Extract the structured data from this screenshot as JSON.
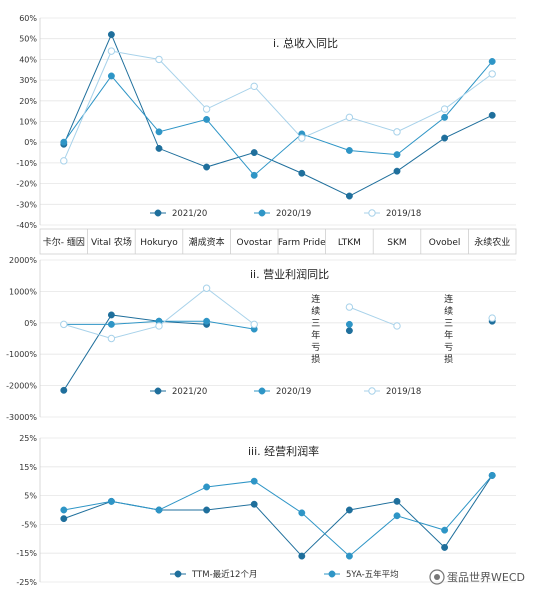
{
  "colors": {
    "dark": "#1f6f9c",
    "mid": "#2e95c6",
    "light": "#a8d2ea",
    "light_fill": "#ffffff",
    "grid": "#e6e6e6",
    "axis": "#cfcfcf"
  },
  "categories": [
    "卡尔- 缅因",
    "Vital 农场",
    "Hokuryo",
    "潮成资本",
    "Ovostar",
    "Farm Pride",
    "LTKM",
    "SKM",
    "Ovobel",
    "永续农业"
  ],
  "watermark": "蛋品世界WECD",
  "chart_data": [
    {
      "type": "line",
      "title": "i. 总收入同比",
      "categories": [
        "卡尔- 缅因",
        "Vital 农场",
        "Hokuryo",
        "潮成资本",
        "Ovostar",
        "Farm Pride",
        "LTKM",
        "SKM",
        "Ovobel",
        "永续农业"
      ],
      "ylim": [
        -40,
        60
      ],
      "yticks": [
        -40,
        -30,
        -20,
        -10,
        0,
        10,
        20,
        30,
        40,
        50,
        60
      ],
      "yticklabels": [
        "-40%",
        "-30%",
        "-20%",
        "-10%",
        "0%",
        "10%",
        "20%",
        "30%",
        "40%",
        "50%",
        "60%"
      ],
      "grid": true,
      "series": [
        {
          "name": "2021/20",
          "color": "dark",
          "marker": "filled",
          "values": [
            -1,
            52,
            -3,
            -12,
            -5,
            -15,
            -26,
            -14,
            2,
            13
          ]
        },
        {
          "name": "2020/19",
          "color": "mid",
          "marker": "filled",
          "values": [
            0,
            32,
            5,
            11,
            -16,
            4,
            -4,
            -6,
            12,
            39
          ]
        },
        {
          "name": "2019/18",
          "color": "light",
          "marker": "hollow",
          "values": [
            -9,
            44,
            40,
            16,
            27,
            2,
            12,
            5,
            16,
            33
          ]
        }
      ]
    },
    {
      "type": "line",
      "title": "ii. 营业利润同比",
      "categories": [
        "卡尔- 缅因",
        "Vital 农场",
        "Hokuryo",
        "潮成资本",
        "Ovostar",
        "Farm Pride",
        "LTKM",
        "SKM",
        "Ovobel",
        "永续农业"
      ],
      "ylim": [
        -3000,
        2000
      ],
      "yticks": [
        -3000,
        -2000,
        -1000,
        0,
        1000,
        2000
      ],
      "yticklabels": [
        "-3000%",
        "-2000%",
        "-1000%",
        "0%",
        "1000%",
        "2000%"
      ],
      "grid": true,
      "annotations": [
        {
          "category": "Farm Pride",
          "text": "连续三年亏损"
        },
        {
          "category": "Ovobel",
          "text": "连续三年亏损"
        }
      ],
      "series": [
        {
          "name": "2021/20",
          "color": "dark",
          "marker": "filled",
          "values": [
            -2150,
            250,
            50,
            -50,
            null,
            null,
            -250,
            null,
            null,
            50
          ]
        },
        {
          "name": "2020/19",
          "color": "mid",
          "marker": "filled",
          "values": [
            -50,
            -50,
            50,
            50,
            -200,
            null,
            -50,
            null,
            null,
            150
          ]
        },
        {
          "name": "2019/18",
          "color": "light",
          "marker": "hollow",
          "values": [
            -50,
            -500,
            -100,
            1100,
            -50,
            null,
            500,
            -100,
            null,
            150
          ]
        }
      ]
    },
    {
      "type": "line",
      "title": "iii. 经营利润率",
      "categories": [
        "卡尔- 缅因",
        "Vital 农场",
        "Hokuryo",
        "潮成资本",
        "Ovostar",
        "Farm Pride",
        "LTKM",
        "SKM",
        "Ovobel",
        "永续农业"
      ],
      "ylim": [
        -25,
        25
      ],
      "yticks": [
        -25,
        -15,
        -5,
        5,
        15,
        25
      ],
      "yticklabels": [
        "-25%",
        "-15%",
        "-5%",
        "5%",
        "15%",
        "25%"
      ],
      "grid": true,
      "series": [
        {
          "name": "TTM-最近12个月",
          "color": "dark",
          "marker": "filled",
          "values": [
            -3,
            3,
            0,
            0,
            2,
            -16,
            0,
            3,
            -13,
            12
          ]
        },
        {
          "name": "5YA-五年平均",
          "color": "mid",
          "marker": "filled",
          "values": [
            0,
            3,
            0,
            8,
            10,
            -1,
            -16,
            -2,
            -7,
            12
          ]
        }
      ]
    }
  ]
}
